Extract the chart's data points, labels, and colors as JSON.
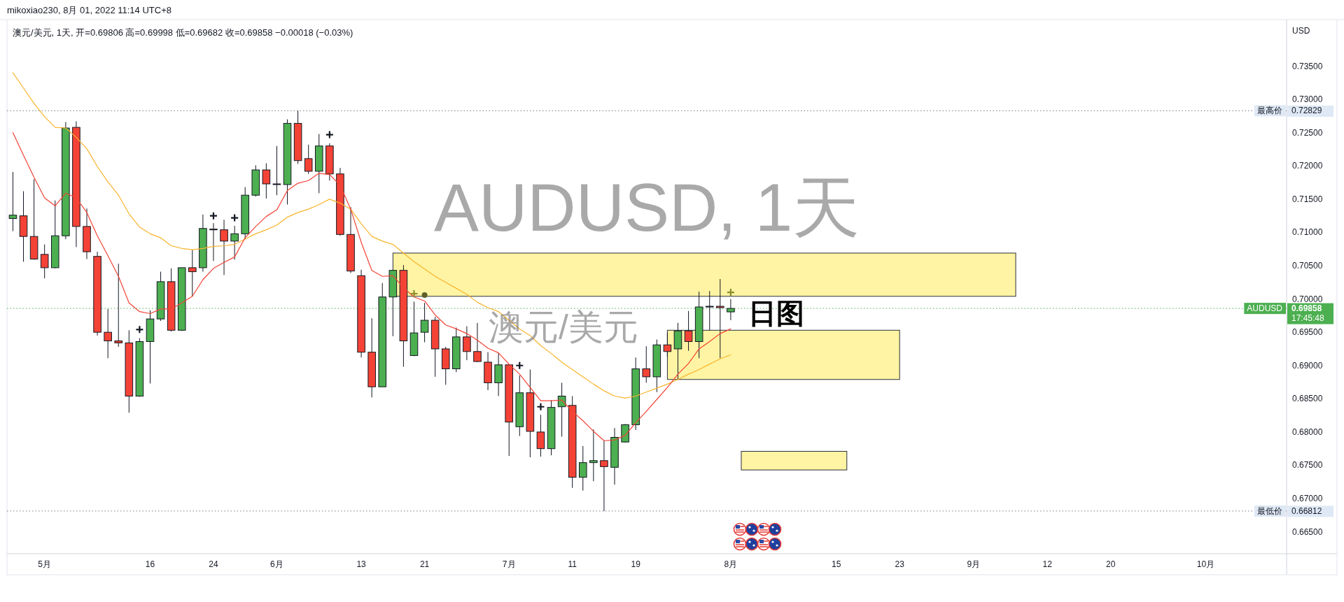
{
  "chart_data": {
    "type": "candlestick",
    "title": "mikoxiao230, 8月 01, 2022 11:14 UTC+8",
    "subtitle": "澳元/美元, 1天, 开=0.69806 高=0.69998 低=0.69682 收=0.69858 −0.00018 (−0.03%)",
    "ylabel": "USD",
    "categories": [
      null,
      null,
      null,
      "5月",
      null,
      null,
      null,
      null,
      null,
      null,
      null,
      null,
      null,
      "16",
      null,
      null,
      null,
      null,
      null,
      "24",
      null,
      null,
      null,
      null,
      null,
      "6月",
      null,
      null,
      null,
      null,
      null,
      null,
      null,
      "13",
      null,
      null,
      null,
      null,
      null,
      "21",
      null,
      null,
      null,
      null,
      null,
      null,
      null,
      "7月",
      null,
      null,
      null,
      null,
      null,
      "11",
      null,
      null,
      null,
      null,
      null,
      "19",
      null,
      null,
      null,
      null,
      null,
      null,
      null,
      null,
      "8月",
      null,
      null,
      null,
      null,
      null,
      null,
      null,
      null,
      null,
      "15",
      null,
      null,
      null,
      null,
      null,
      "23",
      null,
      null,
      null,
      null,
      null,
      null,
      "9月",
      null,
      null,
      null,
      null,
      null,
      null,
      "12",
      null,
      null,
      null,
      null,
      null,
      "20",
      null,
      null,
      null,
      null,
      null,
      null,
      null,
      null,
      "10月",
      null,
      null,
      null,
      null,
      null,
      null,
      null
    ],
    "ohlc": [
      [
        0.7121,
        0.7191,
        0.7102,
        0.7126
      ],
      [
        0.7125,
        0.7162,
        0.7056,
        0.7094
      ],
      [
        0.7094,
        0.718,
        0.7059,
        0.706
      ],
      [
        0.7067,
        0.7082,
        0.7031,
        0.7047
      ],
      [
        0.7047,
        0.7148,
        0.7046,
        0.7095
      ],
      [
        0.7095,
        0.7266,
        0.709,
        0.7257
      ],
      [
        0.7258,
        0.7267,
        0.7078,
        0.7109
      ],
      [
        0.7109,
        0.7136,
        0.706,
        0.7071
      ],
      [
        0.7064,
        0.7071,
        0.6945,
        0.695
      ],
      [
        0.695,
        0.6985,
        0.6911,
        0.6937
      ],
      [
        0.6937,
        0.7053,
        0.6928,
        0.6934
      ],
      [
        0.6934,
        0.6953,
        0.6829,
        0.6854
      ],
      [
        0.6854,
        0.6941,
        0.6853,
        0.6936
      ],
      [
        0.6936,
        0.6983,
        0.6873,
        0.697
      ],
      [
        0.697,
        0.7041,
        0.6967,
        0.7026
      ],
      [
        0.7026,
        0.7046,
        0.6951,
        0.6953
      ],
      [
        0.6953,
        0.7047,
        0.6952,
        0.7047
      ],
      [
        0.7047,
        0.7074,
        0.7004,
        0.7041
      ],
      [
        0.7047,
        0.7127,
        0.7041,
        0.7106
      ],
      [
        0.7105,
        0.7114,
        0.7057,
        0.7104
      ],
      [
        0.7104,
        0.7119,
        0.7036,
        0.7087
      ],
      [
        0.7087,
        0.711,
        0.7059,
        0.7098
      ],
      [
        0.7098,
        0.7168,
        0.709,
        0.7156
      ],
      [
        0.7156,
        0.7201,
        0.7154,
        0.7194
      ],
      [
        0.7194,
        0.7204,
        0.7151,
        0.7173
      ],
      [
        0.7173,
        0.723,
        0.7156,
        0.7172
      ],
      [
        0.7172,
        0.727,
        0.7142,
        0.7264
      ],
      [
        0.7264,
        0.7283,
        0.7203,
        0.7208
      ],
      [
        0.7211,
        0.7232,
        0.7188,
        0.7192
      ],
      [
        0.7192,
        0.7248,
        0.7159,
        0.723
      ],
      [
        0.723,
        0.7234,
        0.7178,
        0.7188
      ],
      [
        0.7188,
        0.7197,
        0.7095,
        0.7097
      ],
      [
        0.7097,
        0.7138,
        0.7039,
        0.7042
      ],
      [
        0.7035,
        0.7044,
        0.6912,
        0.692
      ],
      [
        0.692,
        0.6971,
        0.6852,
        0.6868
      ],
      [
        0.6868,
        0.7024,
        0.6868,
        0.7003
      ],
      [
        0.7003,
        0.7044,
        0.6944,
        0.7043
      ],
      [
        0.7043,
        0.7051,
        0.6898,
        0.6937
      ],
      [
        0.6915,
        0.6996,
        0.6914,
        0.6949
      ],
      [
        0.695,
        0.6994,
        0.6935,
        0.6968
      ],
      [
        0.6968,
        0.6973,
        0.6883,
        0.6925
      ],
      [
        0.6925,
        0.6928,
        0.6871,
        0.6895
      ],
      [
        0.6895,
        0.6957,
        0.689,
        0.6943
      ],
      [
        0.6943,
        0.6959,
        0.6908,
        0.6921
      ],
      [
        0.6921,
        0.6964,
        0.6905,
        0.6906
      ],
      [
        0.6905,
        0.692,
        0.6863,
        0.6874
      ],
      [
        0.6874,
        0.6919,
        0.6854,
        0.6901
      ],
      [
        0.6901,
        0.6902,
        0.6764,
        0.6815
      ],
      [
        0.6808,
        0.6885,
        0.6794,
        0.6859
      ],
      [
        0.6859,
        0.6894,
        0.6762,
        0.6801
      ],
      [
        0.68,
        0.6826,
        0.6763,
        0.6775
      ],
      [
        0.6775,
        0.6848,
        0.6765,
        0.6837
      ],
      [
        0.6838,
        0.6874,
        0.6793,
        0.6854
      ],
      [
        0.684,
        0.6854,
        0.6716,
        0.6732
      ],
      [
        0.6732,
        0.6779,
        0.6712,
        0.6754
      ],
      [
        0.6754,
        0.6804,
        0.6726,
        0.6757
      ],
      [
        0.6757,
        0.6787,
        0.6681,
        0.6748
      ],
      [
        0.6747,
        0.6806,
        0.6721,
        0.6792
      ],
      [
        0.6785,
        0.6812,
        0.6784,
        0.6811
      ],
      [
        0.6811,
        0.6912,
        0.6803,
        0.6895
      ],
      [
        0.6895,
        0.6929,
        0.6874,
        0.6883
      ],
      [
        0.6883,
        0.6939,
        0.686,
        0.6931
      ],
      [
        0.6931,
        0.6949,
        0.6913,
        0.6921
      ],
      [
        0.6925,
        0.6964,
        0.6879,
        0.6952
      ],
      [
        0.6952,
        0.6982,
        0.6922,
        0.6936
      ],
      [
        0.6936,
        0.7011,
        0.6911,
        0.6988
      ],
      [
        0.6988,
        0.7012,
        0.6953,
        0.6989
      ],
      [
        0.6989,
        0.703,
        0.6911,
        0.6987
      ],
      [
        0.69806,
        0.69998,
        0.69682,
        0.69858
      ],
      null,
      null,
      null,
      null,
      null,
      null,
      null,
      null,
      null,
      null,
      null,
      null,
      null,
      null,
      null,
      null,
      null,
      null,
      null,
      null,
      null,
      null,
      null,
      null,
      null,
      null,
      null,
      null,
      null,
      null,
      null,
      null,
      null,
      null,
      null,
      null,
      null,
      null,
      null,
      null,
      null,
      null,
      null,
      null,
      null,
      null,
      null,
      null,
      null,
      null,
      null,
      null
    ],
    "colors": [
      "#4caf50",
      "#f44336",
      "#f44336",
      "#f44336",
      "#4caf50",
      "#4caf50",
      "#f44336",
      "#f44336",
      "#f44336",
      "#f44336",
      "#f44336",
      "#f44336",
      "#4caf50",
      "#4caf50",
      "#4caf50",
      "#f44336",
      "#4caf50",
      "#f44336",
      "#4caf50",
      "#f44336",
      "#f44336",
      "#4caf50",
      "#4caf50",
      "#4caf50",
      "#f44336",
      "#f44336",
      "#4caf50",
      "#f44336",
      "#f44336",
      "#4caf50",
      "#f44336",
      "#f44336",
      "#f44336",
      "#f44336",
      "#f44336",
      "#4caf50",
      "#4caf50",
      "#f44336",
      "#4caf50",
      "#4caf50",
      "#f44336",
      "#f44336",
      "#4caf50",
      "#f44336",
      "#f44336",
      "#f44336",
      "#4caf50",
      "#f44336",
      "#4caf50",
      "#f44336",
      "#f44336",
      "#4caf50",
      "#4caf50",
      "#f44336",
      "#4caf50",
      "#4caf50",
      "#f44336",
      "#4caf50",
      "#4caf50",
      "#4caf50",
      "#f44336",
      "#4caf50",
      "#f44336",
      "#4caf50",
      "#f44336",
      "#4caf50",
      "#4caf50",
      "#f44336",
      "#4caf50",
      null,
      null,
      null,
      null,
      null,
      null,
      null,
      null,
      null,
      null,
      null,
      null,
      null,
      null,
      null,
      null,
      null,
      null,
      null,
      null,
      null,
      null,
      null,
      null,
      null,
      null,
      null,
      null,
      null,
      null,
      null,
      null,
      null,
      null,
      null,
      null,
      null,
      null,
      null,
      null,
      null,
      null,
      null,
      null,
      null,
      null,
      null,
      null,
      null,
      null,
      null,
      null
    ],
    "series": [
      {
        "type": "line",
        "color": "#f9b42d",
        "values": [
          0.734,
          0.7317,
          0.7294,
          0.7274,
          0.7258,
          0.7257,
          0.7243,
          0.7226,
          0.7199,
          0.7176,
          0.7156,
          0.7128,
          0.7108,
          0.7098,
          0.7092,
          0.708,
          0.7076,
          0.7074,
          0.7076,
          0.7079,
          0.708,
          0.7082,
          0.709,
          0.7098,
          0.7104,
          0.7111,
          0.7123,
          0.713,
          0.7135,
          0.7142,
          0.715,
          0.7144,
          0.7135,
          0.7113,
          0.7094,
          0.7087,
          0.7082,
          0.7069,
          0.7056,
          0.7045,
          0.7034,
          0.7025,
          0.7016,
          0.7007,
          0.6995,
          0.6987,
          0.6981,
          0.6968,
          0.6955,
          0.6945,
          0.693,
          0.6918,
          0.6905,
          0.6894,
          0.6883,
          0.6872,
          0.6862,
          0.6854,
          0.6851,
          0.6854,
          0.686,
          0.6866,
          0.6872,
          0.6879,
          0.6887,
          0.6894,
          0.6902,
          0.691,
          0.6916,
          null,
          null,
          null,
          null,
          null,
          null,
          null,
          null,
          null,
          null,
          null,
          null,
          null,
          null,
          null,
          null,
          null,
          null,
          null,
          null,
          null,
          null,
          null,
          null,
          null,
          null,
          null,
          null,
          null,
          null,
          null,
          null,
          null,
          null,
          null,
          null,
          null,
          null,
          null,
          null,
          null,
          null,
          null,
          null,
          null,
          null,
          null,
          null,
          null,
          null,
          null,
          null
        ]
      },
      {
        "type": "line",
        "color": "#f44336",
        "values": [
          0.725,
          0.7216,
          0.7183,
          0.7152,
          0.714,
          0.7159,
          0.7152,
          0.713,
          0.7095,
          0.7065,
          0.7034,
          0.6994,
          0.6981,
          0.6978,
          0.6985,
          0.6985,
          0.6994,
          0.7004,
          0.7029,
          0.7046,
          0.7055,
          0.7063,
          0.7092,
          0.7109,
          0.7124,
          0.7134,
          0.7163,
          0.7174,
          0.7178,
          0.7189,
          0.7187,
          0.7171,
          0.7135,
          0.7085,
          0.7043,
          0.7034,
          0.7035,
          0.7017,
          0.7003,
          0.6997,
          0.6976,
          0.6961,
          0.6955,
          0.6948,
          0.6938,
          0.6926,
          0.6919,
          0.6902,
          0.6887,
          0.6867,
          0.6847,
          0.6847,
          0.6848,
          0.6831,
          0.6817,
          0.6801,
          0.6787,
          0.6788,
          0.6795,
          0.6814,
          0.6831,
          0.6849,
          0.6867,
          0.6887,
          0.6903,
          0.6925,
          0.6936,
          0.6948,
          0.6955,
          null,
          null,
          null,
          null,
          null,
          null,
          null,
          null,
          null,
          null,
          null,
          null,
          null,
          null,
          null,
          null,
          null,
          null,
          null,
          null,
          null,
          null,
          null,
          null,
          null,
          null,
          null,
          null,
          null,
          null,
          null,
          null,
          null,
          null,
          null,
          null,
          null,
          null,
          null,
          null,
          null,
          null,
          null,
          null,
          null,
          null,
          null,
          null,
          null,
          null,
          null,
          null
        ]
      },
      {
        "type": "scatter",
        "marker": "cross",
        "color": "#131722",
        "values": [
          null,
          null,
          null,
          null,
          null,
          null,
          null,
          null,
          null,
          null,
          null,
          null,
          0.6954,
          null,
          null,
          null,
          null,
          null,
          null,
          0.7125,
          null,
          0.7122,
          null,
          null,
          null,
          null,
          null,
          null,
          null,
          null,
          0.7247,
          null,
          null,
          null,
          null,
          null,
          null,
          null,
          null,
          null,
          null,
          null,
          null,
          null,
          null,
          null,
          null,
          null,
          0.69,
          null,
          0.6838,
          null,
          null,
          null,
          null,
          null,
          null,
          null,
          null,
          null,
          null,
          null,
          null,
          null,
          null,
          null,
          null,
          null,
          null,
          null,
          null,
          null,
          null,
          null,
          null,
          null,
          null,
          null,
          null,
          null,
          null,
          null,
          null,
          null,
          null,
          null,
          null,
          null,
          null,
          null,
          null,
          null,
          null,
          null,
          null,
          null,
          null,
          null,
          null,
          null,
          null,
          null,
          null,
          null,
          null,
          null,
          null,
          null,
          null,
          null,
          null,
          null,
          null,
          null,
          null,
          null,
          null,
          null,
          null,
          null,
          null
        ]
      },
      {
        "type": "scatter",
        "marker": "cross",
        "color": "#8c8c2c",
        "values": [
          null,
          null,
          null,
          null,
          null,
          null,
          null,
          null,
          null,
          null,
          null,
          null,
          null,
          null,
          null,
          null,
          null,
          null,
          null,
          null,
          null,
          null,
          null,
          null,
          null,
          null,
          null,
          null,
          null,
          null,
          null,
          null,
          null,
          null,
          null,
          null,
          null,
          null,
          0.7008,
          null,
          null,
          null,
          null,
          null,
          null,
          null,
          null,
          null,
          null,
          null,
          null,
          null,
          null,
          null,
          null,
          null,
          null,
          null,
          null,
          null,
          null,
          null,
          null,
          null,
          null,
          null,
          null,
          null,
          0.701,
          null,
          null,
          null,
          null,
          null,
          null,
          null,
          null,
          null,
          null,
          null,
          null,
          null,
          null,
          null,
          null,
          null,
          null,
          null,
          null,
          null,
          null,
          null,
          null,
          null,
          null,
          null,
          null,
          null,
          null,
          null,
          null,
          null,
          null,
          null,
          null,
          null,
          null,
          null,
          null,
          null,
          null,
          null,
          null,
          null,
          null,
          null,
          null,
          null,
          null,
          null,
          null
        ]
      },
      {
        "type": "scatter",
        "marker": "circle",
        "color": "#5e5e2a",
        "values": [
          null,
          null,
          null,
          null,
          null,
          null,
          null,
          null,
          null,
          null,
          null,
          null,
          null,
          null,
          null,
          null,
          null,
          null,
          null,
          null,
          null,
          null,
          null,
          null,
          null,
          null,
          null,
          null,
          null,
          null,
          null,
          null,
          null,
          null,
          null,
          null,
          null,
          null,
          null,
          0.7006,
          null,
          null,
          null,
          null,
          null,
          null,
          null,
          null,
          null,
          null,
          null,
          null,
          null,
          null,
          null,
          null,
          null,
          null,
          null,
          null,
          null,
          null,
          null,
          null,
          null,
          null,
          null,
          null,
          null,
          null,
          null,
          null,
          null,
          null,
          null,
          null,
          null,
          null,
          null,
          null,
          null,
          null,
          null,
          null,
          null,
          null,
          null,
          null,
          null,
          null,
          null,
          null,
          null,
          null,
          null,
          null,
          null,
          null,
          null,
          null,
          null,
          null,
          null,
          null,
          null,
          null,
          null,
          null,
          null,
          null,
          null,
          null,
          null,
          null,
          null,
          null,
          null,
          null,
          null,
          null,
          null
        ]
      }
    ],
    "bands": [
      {
        "axis": "y",
        "from": 0.7004,
        "to": 0.7069,
        "color": "#fff4a3"
      },
      {
        "axis": "y",
        "from": 0.6879,
        "to": 0.6953,
        "color": "#fff4a3"
      },
      {
        "axis": "y",
        "from": 0.6743,
        "to": 0.6771,
        "color": "#fff4a3"
      }
    ],
    "ylim": [
      0.6617,
      0.742
    ],
    "yticks": [
      {
        "value": 0.665,
        "label": "0.66500"
      },
      {
        "value": 0.67,
        "label": "0.67000"
      },
      {
        "value": 0.675,
        "label": "0.67500"
      },
      {
        "value": 0.68,
        "label": "0.68000"
      },
      {
        "value": 0.685,
        "label": "0.68500"
      },
      {
        "value": 0.69,
        "label": "0.69000"
      },
      {
        "value": 0.695,
        "label": "0.69500"
      },
      {
        "value": 0.7,
        "label": "0.70000"
      },
      {
        "value": 0.705,
        "label": "0.70500"
      },
      {
        "value": 0.71,
        "label": "0.71000"
      },
      {
        "value": 0.715,
        "label": "0.71500"
      },
      {
        "value": 0.72,
        "label": "0.72000"
      },
      {
        "value": 0.725,
        "label": "0.72500"
      },
      {
        "value": 0.73,
        "label": "0.73000"
      },
      {
        "value": 0.735,
        "label": "0.73500"
      },
      {
        "value": 0.72829,
        "label": "0.72829"
      },
      {
        "value": 0.66812,
        "label": "0.66812"
      },
      {
        "value": 0.69858,
        "label": "0.69858"
      }
    ],
    "ref_lines": [
      {
        "axis": "y",
        "value": 0.72829,
        "label": "最高价",
        "color": "#787b86",
        "line_style": "dotted"
      },
      {
        "axis": "y",
        "value": 0.66812,
        "label": "最低价",
        "color": "#787b86",
        "line_style": "dotted"
      },
      {
        "axis": "y",
        "value": 0.69858,
        "label": "AUDUSD",
        "color": "#4caf50",
        "line_style": "dotted"
      }
    ],
    "annotations": [
      "AUDUSD, 1天",
      "澳元/美元",
      "日图",
      "17:45:48"
    ]
  }
}
